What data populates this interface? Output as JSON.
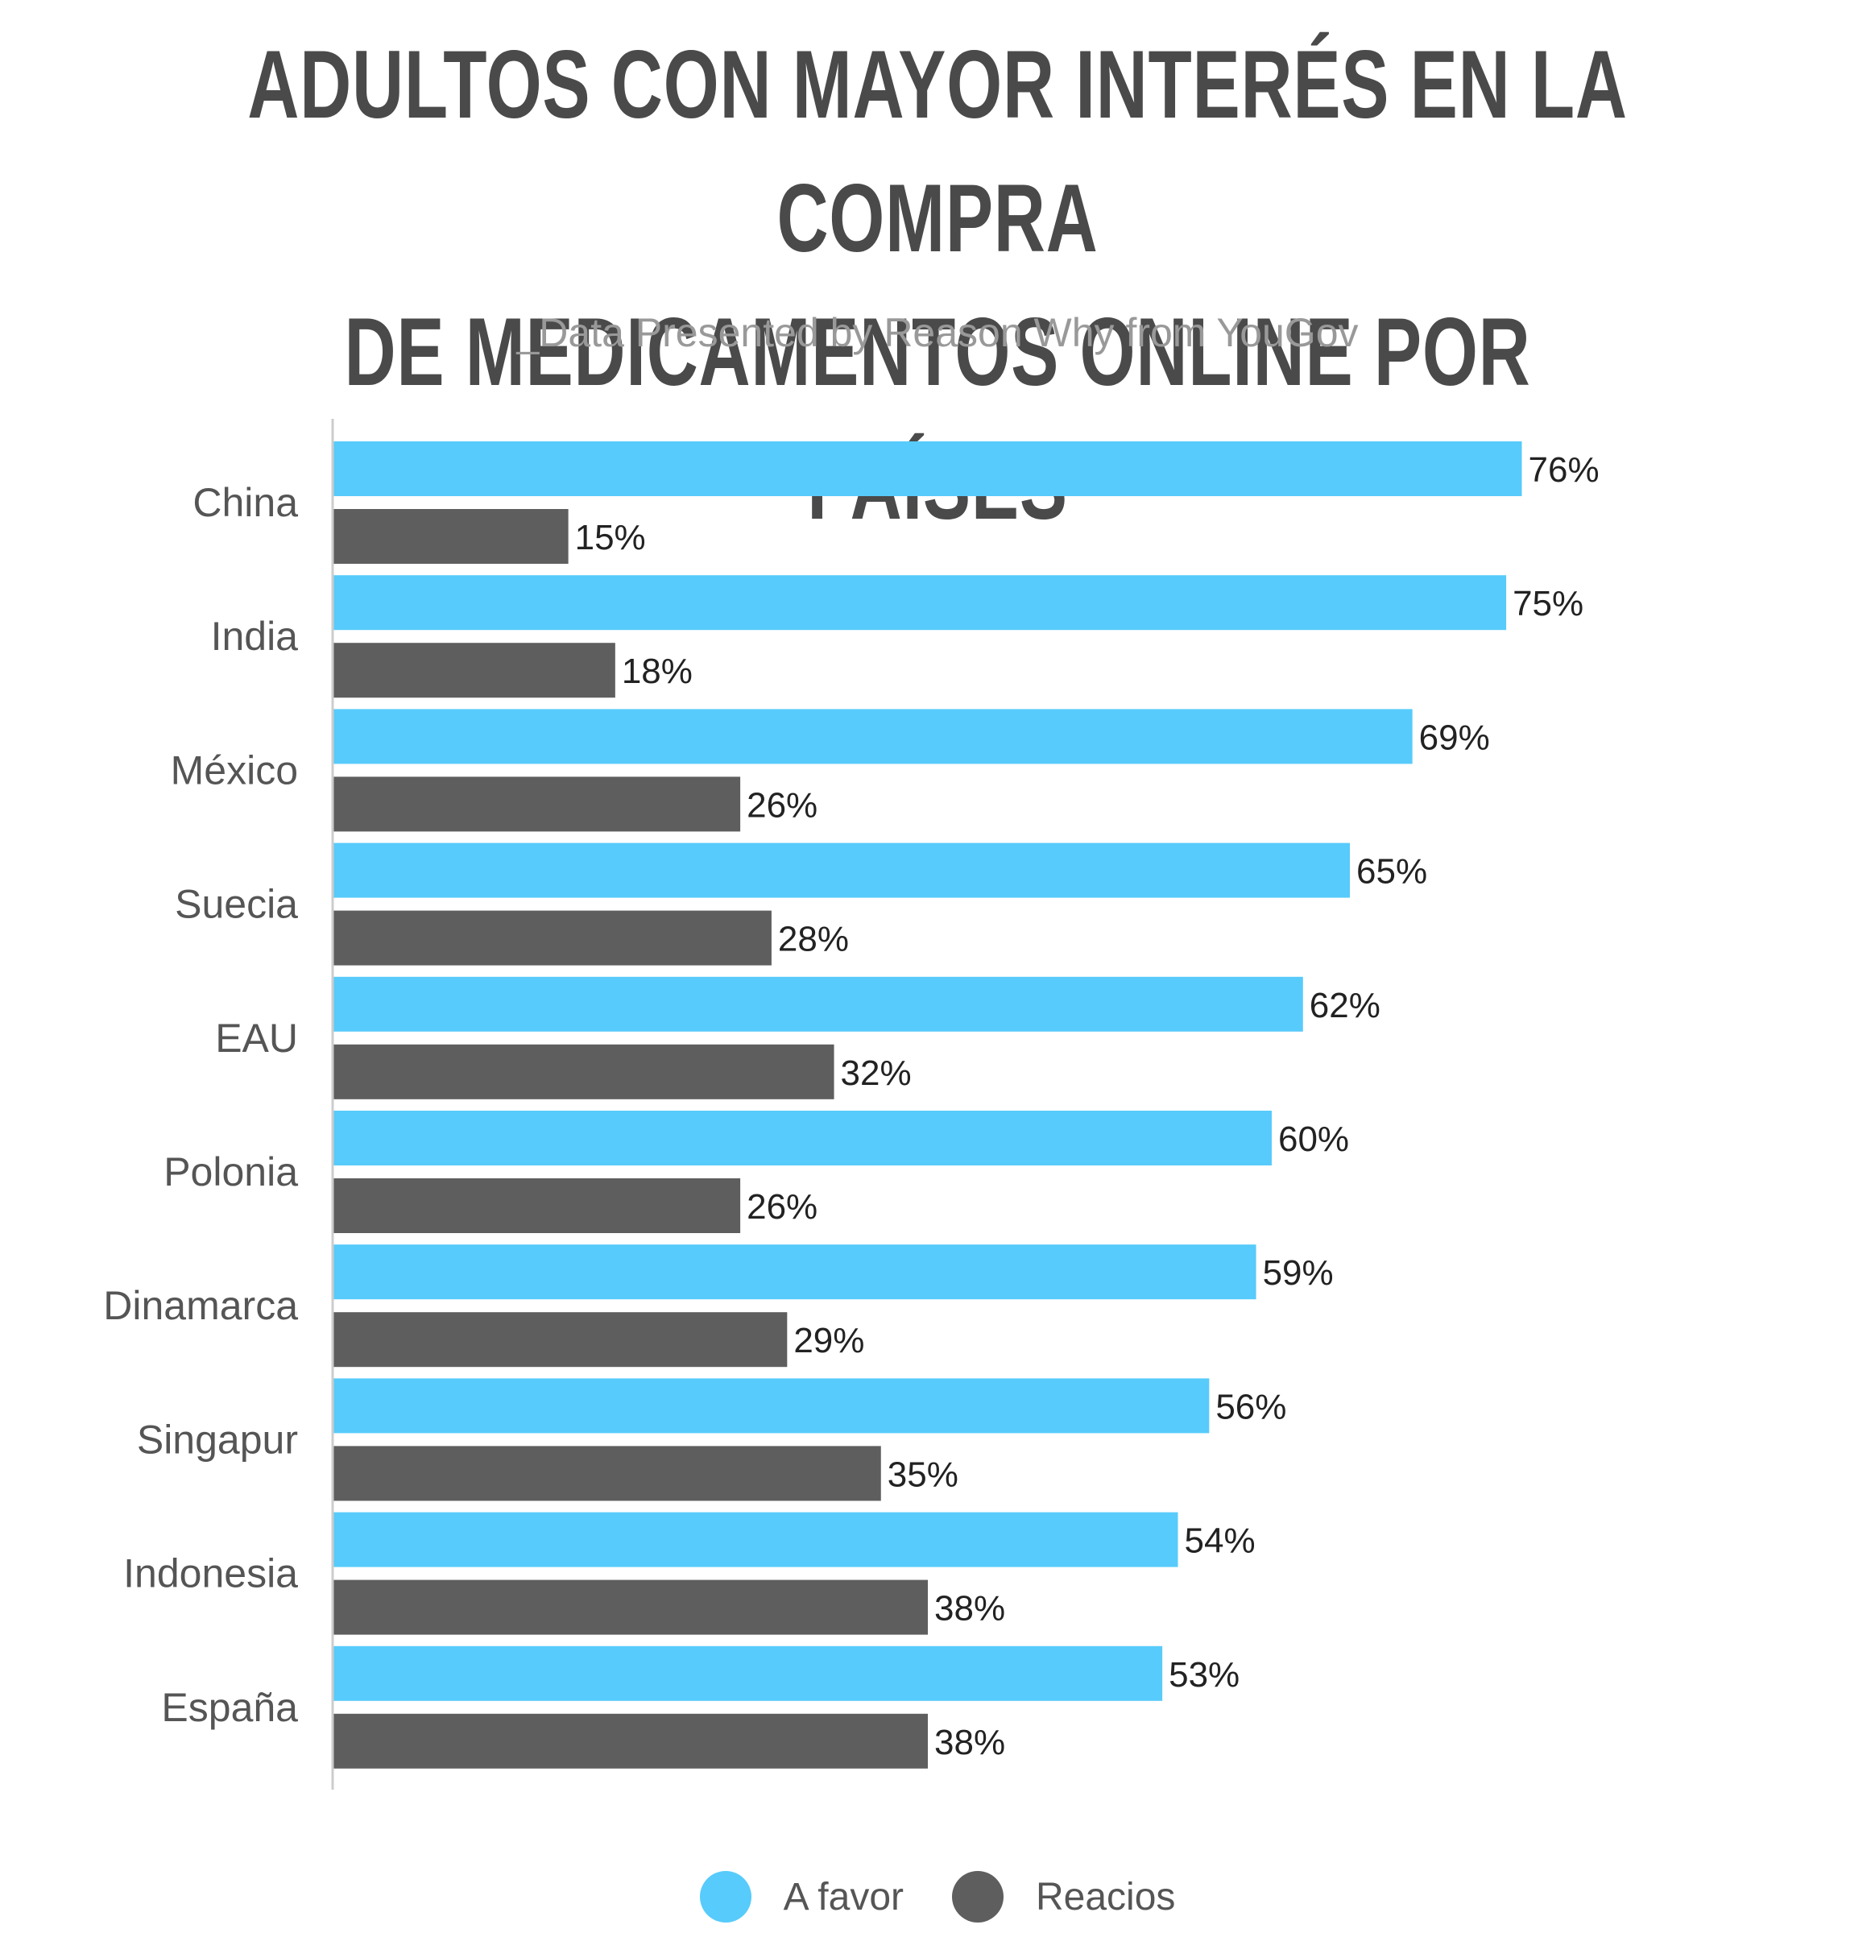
{
  "chart_data": {
    "type": "bar",
    "orientation": "horizontal",
    "title_lines": [
      "ADULTOS CON MAYOR INTERÉS EN LA COMPRA",
      "DE MEDICAMENTOS ONLINE POR PAÍSES"
    ],
    "subtitle": "_Data Presented by Reason Why from YouGov",
    "categories": [
      "China",
      "India",
      "México",
      "Suecia",
      "EAU",
      "Polonia",
      "Dinamarca",
      "Singapur",
      "Indonesia",
      "España"
    ],
    "series": [
      {
        "name": "A favor",
        "color": "#57cbfb",
        "values": [
          76,
          75,
          69,
          65,
          62,
          60,
          59,
          56,
          54,
          53
        ],
        "labels": [
          "76%",
          "75%",
          "69%",
          "65%",
          "62%",
          "60%",
          "59%",
          "56%",
          "54%",
          "53%"
        ]
      },
      {
        "name": "Reacios",
        "color": "#5e5e5e",
        "values": [
          15,
          18,
          26,
          28,
          32,
          26,
          29,
          35,
          38,
          38
        ],
        "labels": [
          "15%",
          "18%",
          "26%",
          "28%",
          "32%",
          "26%",
          "29%",
          "35%",
          "38%",
          "38%"
        ]
      }
    ],
    "value_unit": "%",
    "xlim": [
      0,
      76
    ],
    "grid": false,
    "legend_position": "bottom-center"
  }
}
